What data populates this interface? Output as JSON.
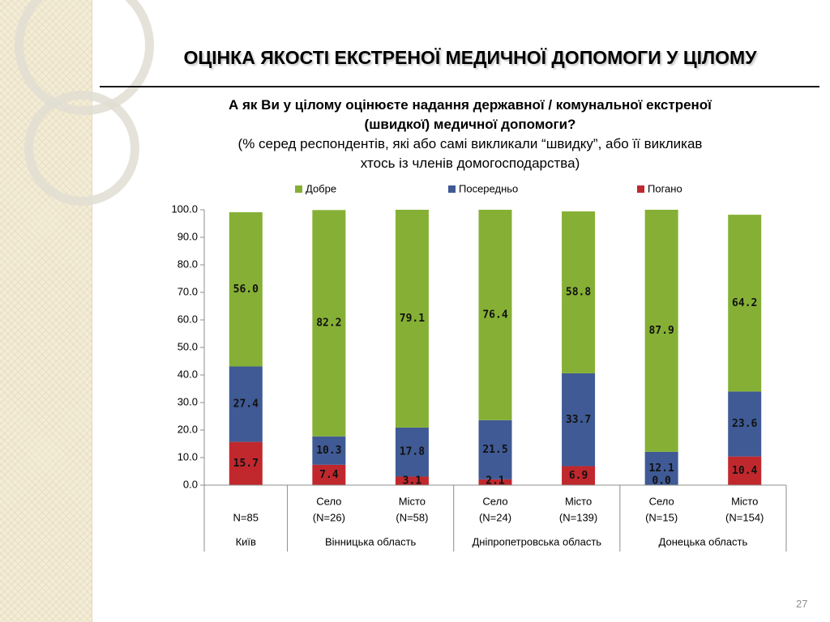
{
  "slide": {
    "title": "ОЦІНКА ЯКОСТІ ЕКСТРЕНОЇ МЕДИЧНОЇ ДОПОМОГИ У ЦІЛОМУ",
    "question_line1": "А як Ви у цілому оцінюєте надання державної / комунальної екстреної",
    "question_line2": "(швидкої) медичної допомоги?",
    "note_line1": "(% серед респондентів, які або самі викликали “швидку”, або її викликав",
    "note_line2": "хтось із членів домогосподарства)",
    "page_number": "27"
  },
  "chart_data": {
    "type": "bar",
    "stacked": true,
    "ylim": [
      0,
      100
    ],
    "yticks": [
      "0.0",
      "10.0",
      "20.0",
      "30.0",
      "40.0",
      "50.0",
      "60.0",
      "70.0",
      "80.0",
      "90.0",
      "100.0"
    ],
    "legend_position": "top",
    "categories": [
      {
        "line1": "",
        "line2": "N=85"
      },
      {
        "line1": "Село",
        "line2": "(N=26)"
      },
      {
        "line1": "Місто",
        "line2": "(N=58)"
      },
      {
        "line1": "Село",
        "line2": "(N=24)"
      },
      {
        "line1": "Місто",
        "line2": "(N=139)"
      },
      {
        "line1": "Село",
        "line2": "(N=15)"
      },
      {
        "line1": "Місто",
        "line2": "(N=154)"
      }
    ],
    "groups": [
      {
        "label": "Київ",
        "span": 1
      },
      {
        "label": "Вінницька область",
        "span": 2
      },
      {
        "label": "Дніпропетровська область",
        "span": 2
      },
      {
        "label": "Донецька область",
        "span": 2
      }
    ],
    "series": [
      {
        "name": "Погано",
        "color": "#c0282d",
        "values": [
          15.7,
          7.4,
          3.1,
          2.1,
          6.9,
          0.0,
          10.4
        ],
        "labels": [
          "15.7",
          "7.4",
          "3.1",
          "2.1",
          "6.9",
          "0.0",
          "10.4"
        ]
      },
      {
        "name": "Посередньо",
        "color": "#3f5a95",
        "values": [
          27.4,
          10.3,
          17.8,
          21.5,
          33.7,
          12.1,
          23.6
        ],
        "labels": [
          "27.4",
          "10.3",
          "17.8",
          "21.5",
          "33.7",
          "12.1",
          "23.6"
        ]
      },
      {
        "name": "Добре",
        "color": "#86b035",
        "values": [
          56.0,
          82.2,
          79.1,
          76.4,
          58.8,
          87.9,
          64.2
        ],
        "labels": [
          "56.0",
          "82.2",
          "79.1",
          "76.4",
          "58.8",
          "87.9",
          "64.2"
        ]
      }
    ],
    "legend_order": [
      "Добре",
      "Посередньо",
      "Погано"
    ]
  }
}
